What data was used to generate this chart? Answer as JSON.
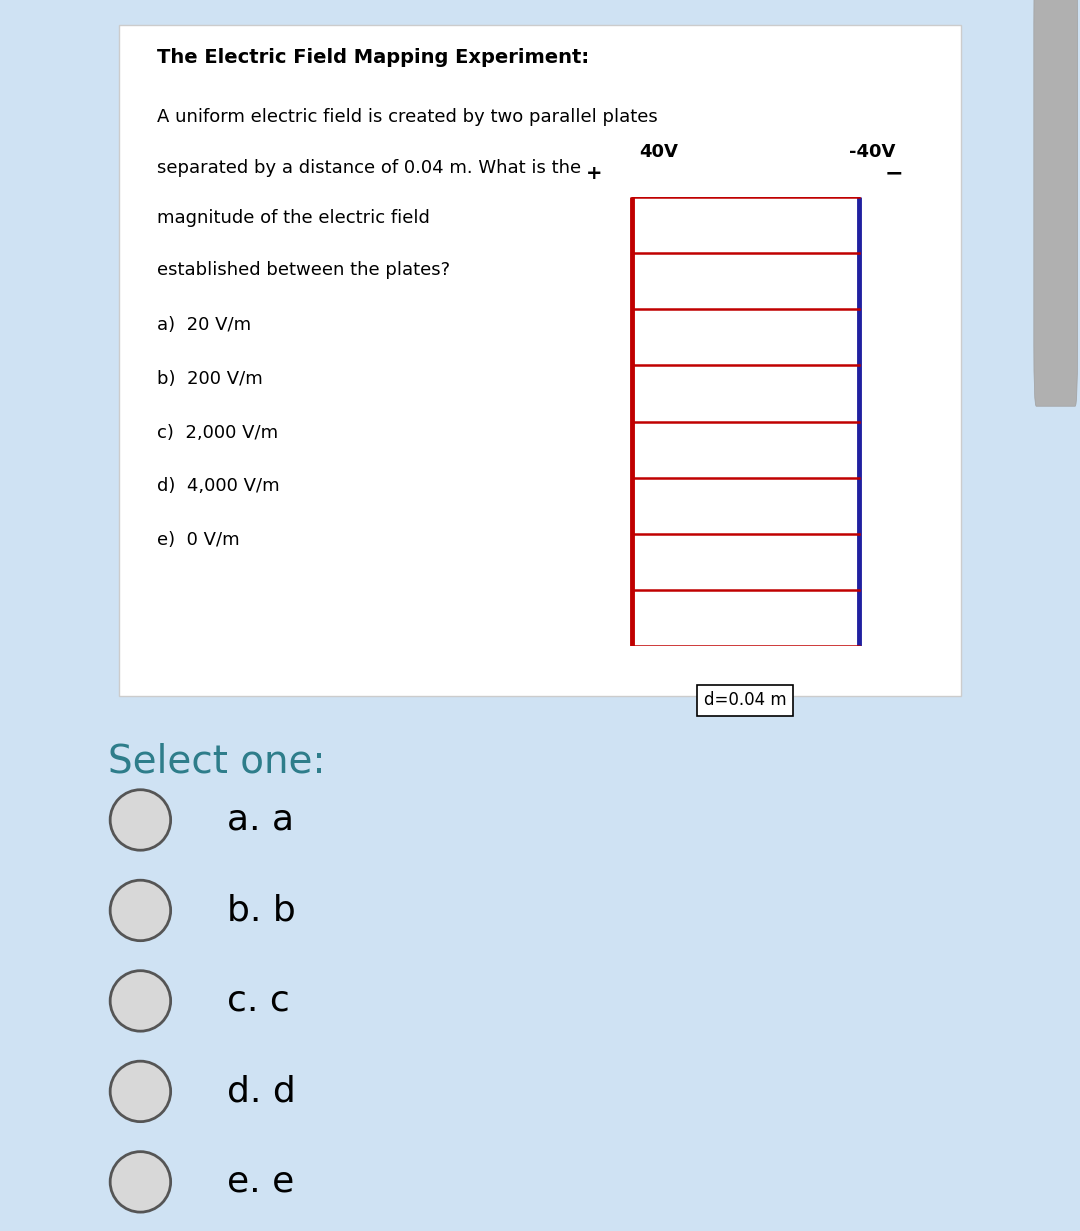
{
  "title": "The Electric Field Mapping Experiment:",
  "question_line1": "A uniform electric field is created by two parallel plates",
  "question_line2": "separated by a distance of 0.04 m. What is the",
  "question_line3": "magnitude of the electric field",
  "question_line4": "established between the plates?",
  "options": [
    "a)  20 V/m",
    "b)  200 V/m",
    "c)  2,000 V/m",
    "d)  4,000 V/m",
    "e)  0 V/m"
  ],
  "diagram_label_left": "40V",
  "diagram_label_right": "-40V",
  "diagram_plus": "+",
  "diagram_minus": "−",
  "diagram_distance": "d=0.04 m",
  "plate_color_left": "#c00000",
  "plate_color_right": "#2020a0",
  "field_line_color": "#c00000",
  "num_field_lines": 9,
  "select_one_text": "Select one:",
  "choices": [
    "a. a",
    "b. b",
    "c. c",
    "d. d",
    "e. e"
  ],
  "card_bg": "#ffffff",
  "page_bg": "#cfe2f3",
  "text_color": "#000000",
  "select_text_color": "#2e7d8a",
  "title_fontsize": 14,
  "body_fontsize": 13,
  "option_fontsize": 13,
  "select_fontsize": 28,
  "choice_fontsize": 26,
  "diag_label_fontsize": 13,
  "diag_dist_fontsize": 12
}
